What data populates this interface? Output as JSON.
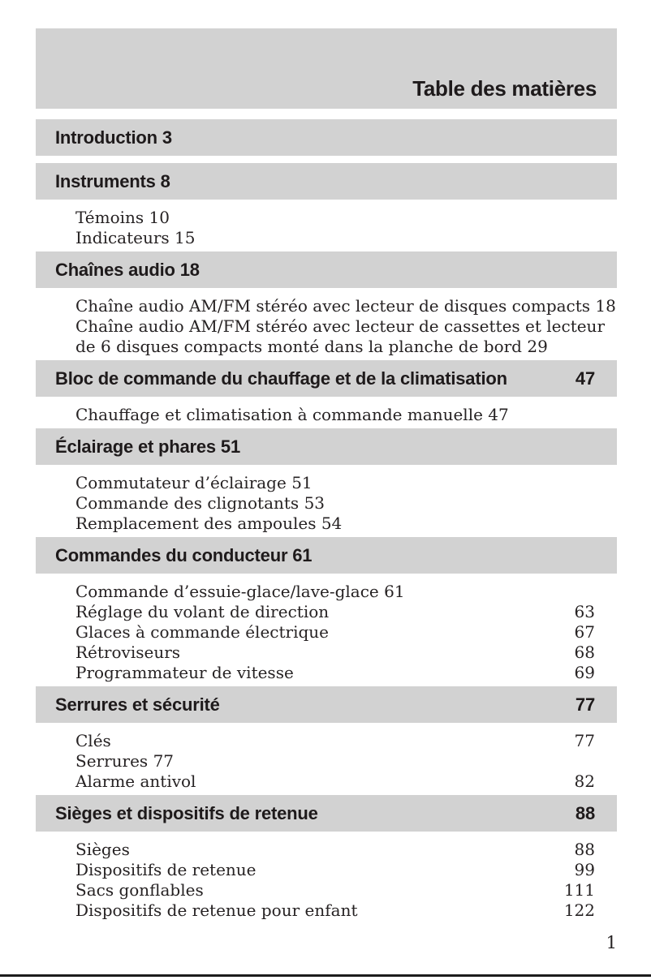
{
  "page": {
    "title": "Table des matières",
    "page_number": "1",
    "colors": {
      "bar_gray": "#d2d2d2",
      "text": "#262223",
      "rule": "#1c1c1c"
    }
  },
  "sections": [
    {
      "title": "Introduction",
      "page": "3",
      "number_position": "inline",
      "items": []
    },
    {
      "title": "Instruments",
      "page": "8",
      "number_position": "inline",
      "items": [
        {
          "label": "Témoins",
          "page": "10",
          "number_position": "inline"
        },
        {
          "label": "Indicateurs",
          "page": "15",
          "number_position": "inline"
        }
      ]
    },
    {
      "title": "Chaînes audio",
      "page": "18",
      "number_position": "inline",
      "items": [
        {
          "label": "Chaîne audio AM/FM stéréo avec lecteur de disques compacts",
          "page": "18",
          "number_position": "inline"
        },
        {
          "label": "Chaîne audio AM/FM stéréo avec lecteur de cassettes et lecteur",
          "page": "",
          "number_position": "inline"
        },
        {
          "label": "de 6 disques compacts monté dans la planche de bord",
          "page": "29",
          "number_position": "inline"
        }
      ]
    },
    {
      "title": "Bloc de commande du chauffage et de la climatisation",
      "page": "47",
      "number_position": "right",
      "items": [
        {
          "label": "Chauffage et climatisation à commande manuelle",
          "page": "47",
          "number_position": "inline"
        }
      ]
    },
    {
      "title": "Éclairage et phares",
      "page": "51",
      "number_position": "inline",
      "items": [
        {
          "label": "Commutateur d’éclairage",
          "page": "51",
          "number_position": "inline"
        },
        {
          "label": "Commande des clignotants",
          "page": "53",
          "number_position": "inline"
        },
        {
          "label": "Remplacement des ampoules",
          "page": "54",
          "number_position": "inline"
        }
      ]
    },
    {
      "title": "Commandes du conducteur",
      "page": "61",
      "number_position": "inline",
      "items": [
        {
          "label": "Commande d’essuie-glace/lave-glace",
          "page": "61",
          "number_position": "inline"
        },
        {
          "label": "Réglage du volant de direction",
          "page": "63",
          "number_position": "right"
        },
        {
          "label": "Glaces à commande électrique",
          "page": "67",
          "number_position": "right"
        },
        {
          "label": "Rétroviseurs",
          "page": "68",
          "number_position": "right"
        },
        {
          "label": "Programmateur de vitesse",
          "page": "69",
          "number_position": "right"
        }
      ]
    },
    {
      "title": "Serrures et sécurité",
      "page": "77",
      "number_position": "right",
      "items": [
        {
          "label": "Clés",
          "page": "77",
          "number_position": "right"
        },
        {
          "label": "Serrures",
          "page": "77",
          "number_position": "inline"
        },
        {
          "label": "Alarme antivol",
          "page": "82",
          "number_position": "right"
        }
      ]
    },
    {
      "title": "Sièges et dispositifs de retenue",
      "page": "88",
      "number_position": "right",
      "items": [
        {
          "label": "Sièges",
          "page": "88",
          "number_position": "right"
        },
        {
          "label": "Dispositifs de retenue",
          "page": "99",
          "number_position": "right"
        },
        {
          "label": "Sacs gonflables",
          "page": "111",
          "number_position": "right"
        },
        {
          "label": "Dispositifs de retenue pour enfant",
          "page": "122",
          "number_position": "right"
        }
      ]
    }
  ]
}
